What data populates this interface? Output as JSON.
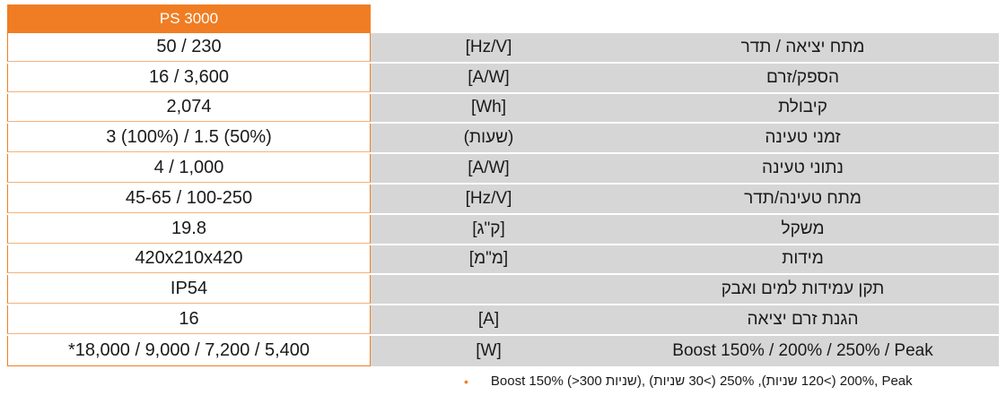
{
  "header": {
    "model": "PS 3000"
  },
  "rows": [
    {
      "param": "מתח יציאה / תדר",
      "unit": "[Hz/V]",
      "value": "50 / 230"
    },
    {
      "param": "הספק/זרם",
      "unit": "[A/W]",
      "value": "16 / 3,600"
    },
    {
      "param": "קיבולת",
      "unit": "[Wh]",
      "value": "2,074"
    },
    {
      "param": "זמני טעינה",
      "unit": "(שעות)",
      "value": "3 (100%) / 1.5 (50%)"
    },
    {
      "param": "נתוני טעינה",
      "unit": "[A/W]",
      "value": "4 / 1,000"
    },
    {
      "param": "מתח טעינה/תדר",
      "unit": "[Hz/V]",
      "value": "45-65 / 100-250"
    },
    {
      "param": "משקל",
      "unit": "[ק\"ג]",
      "value": "19.8"
    },
    {
      "param": "מידות",
      "unit": "[מ\"מ]",
      "value": "420x210x420"
    },
    {
      "param": "תקן עמידות למים ואבק",
      "unit": "",
      "value": "IP54"
    },
    {
      "param": "הגנת זרם יציאה",
      "unit": "[A]",
      "value": "16"
    },
    {
      "param": "Boost 150% / 200% / 250% / Peak",
      "unit": "[W]",
      "value": "*18,000 / 9,000 / 7,200 / 5,400"
    }
  ],
  "footnote": {
    "bullet": "•",
    "text": "Boost 150% (>300 שניות), 200% (>120 שניות), 250% (>30 שניות), Peak"
  }
}
